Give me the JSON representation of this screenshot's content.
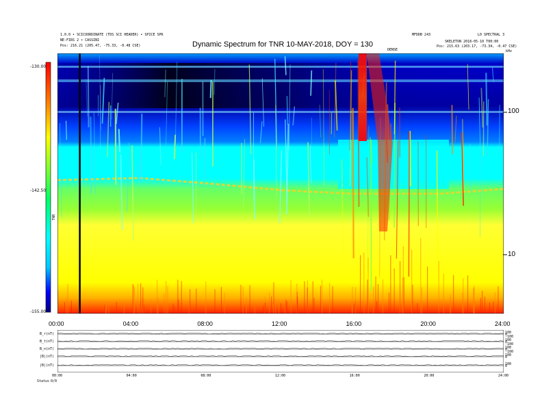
{
  "header": {
    "left_line1": "1.0.0 • SCICOORDINATE (TDS SCI HEADER) • SPICE SPK",
    "left_line2": "NE-FIRS 2 • CASSINI",
    "left_line3": "Pos:   216.21 (205.47, -75.33, -0.48 CSE)",
    "center_small": "DENSE",
    "right_line1a": "MFDDB 243",
    "right_line1b": "L0 SPECTRAL 3",
    "right_line2": "SKELETON 2018-05-10 T00:00",
    "right_line3": "Pos:   215.63 (203.17, -73.34, -0.47 CSE)",
    "right_corner": "kHz"
  },
  "chart_data": [
    {
      "type": "heatmap",
      "title": "Dynamic Spectrum for TNR 10-MAY-2018, DOY = 130",
      "xlabel": "",
      "ylabel": "",
      "x_ticks": [
        "00:00",
        "04:00",
        "08:00",
        "12:00",
        "16:00",
        "20:00",
        "24:00"
      ],
      "xlim_hours": [
        0,
        24
      ],
      "y_scale": "log",
      "ylim_khz": [
        3.5,
        400
      ],
      "y_ticks": [
        {
          "value": 100,
          "label": "100"
        },
        {
          "value": 10,
          "label": "10"
        }
      ],
      "y_corner_label": "kHz",
      "colorbar": {
        "label": "TNR",
        "ticks": [
          "-130.00",
          "-142.50",
          "-155.00"
        ],
        "range": [
          -155,
          -130
        ],
        "stops": [
          "#00007a",
          "#0000ff",
          "#00c8ff",
          "#00ffff",
          "#00ff66",
          "#ffff00",
          "#ff7700",
          "#ff0000"
        ]
      },
      "cursor_hour": 1.2
    },
    {
      "type": "line",
      "title": "",
      "panels": [
        {
          "label": "B_r(nT)",
          "right_ticks": [
            "100",
            "0",
            "-100"
          ]
        },
        {
          "label": "B_t(nT)",
          "right_ticks": [
            "100",
            "0",
            "-100"
          ]
        },
        {
          "label": "B_n(nT)",
          "right_ticks": [
            "100",
            "0",
            "-100"
          ]
        },
        {
          "label": "|B|(nT)",
          "right_ticks": [
            "100",
            "0"
          ]
        },
        {
          "label": "|B|(nT)",
          "right_ticks": [
            "100",
            "0"
          ]
        }
      ],
      "x_ticks": [
        "00:00",
        "04:00",
        "08:00",
        "12:00",
        "16:00",
        "20:00",
        "24:00"
      ],
      "footer_label": "Status",
      "footer_value": "0/0"
    }
  ]
}
